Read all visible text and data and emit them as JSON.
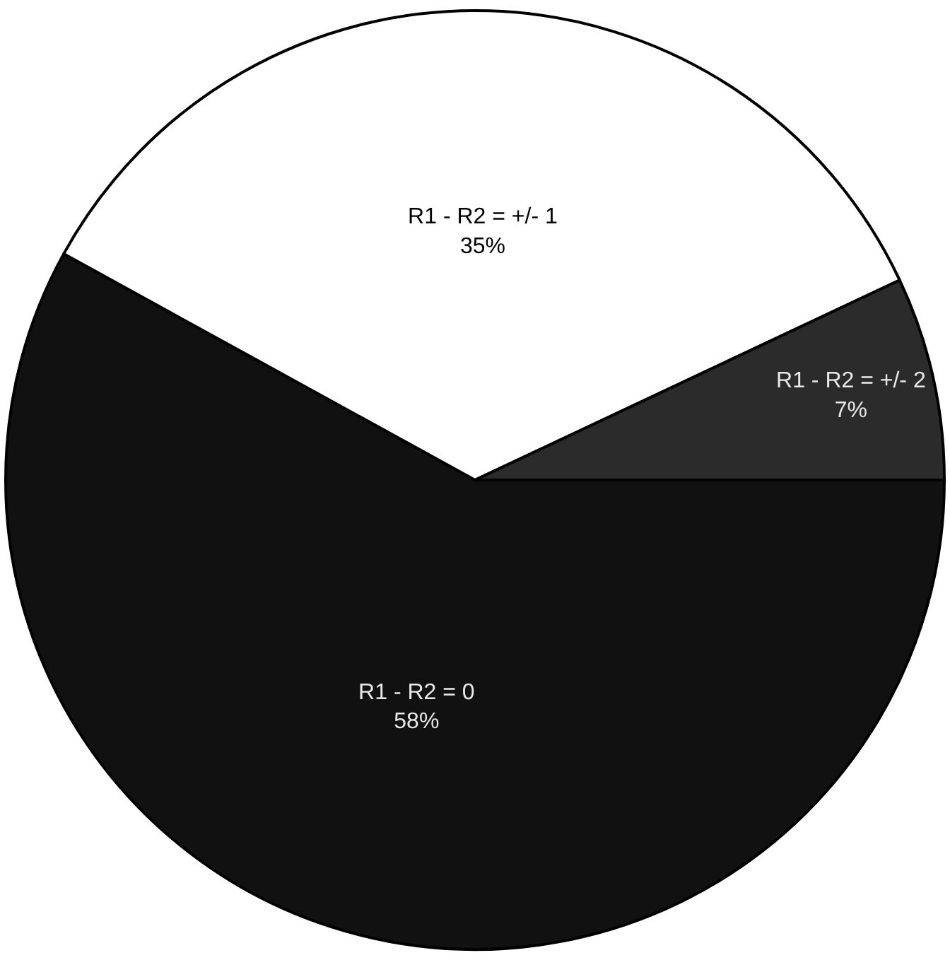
{
  "chart_data": {
    "type": "pie",
    "categories": [
      "R1 - R2 = 0",
      "R1 - R2 = +/- 1",
      "R1 - R2 = +/- 2"
    ],
    "values": [
      58,
      35,
      7
    ],
    "value_labels": [
      "58%",
      "35%",
      "7%"
    ],
    "colors": [
      "#111111",
      "#ffffff",
      "#2b2b2b"
    ],
    "legend": false
  }
}
